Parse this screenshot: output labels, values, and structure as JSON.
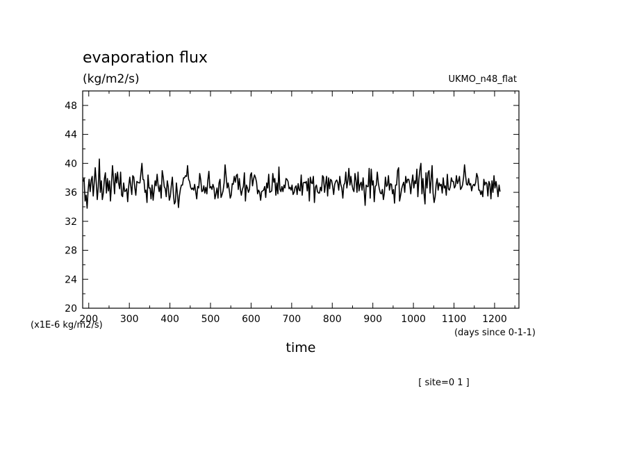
{
  "chart_data": {
    "type": "line",
    "title": "evaporation flux",
    "title_units": "(kg/m2/s)",
    "model_label": "UKMO_n48_flat",
    "xlabel": "time",
    "x_units": "(days since 0-1-1)",
    "y_units": "(x1E-6 kg/m2/s)",
    "site_label": "[ site=0 1 ]",
    "xlim": [
      185,
      1260
    ],
    "ylim": [
      20,
      50
    ],
    "x_ticks": [
      200,
      300,
      400,
      500,
      600,
      700,
      800,
      900,
      1000,
      1100,
      1200
    ],
    "y_ticks": [
      20,
      24,
      28,
      32,
      36,
      40,
      44,
      48
    ],
    "grid": false,
    "series": [
      {
        "x_start": 186,
        "x_step": 2.5,
        "values": [
          37.5,
          37.9,
          34.8,
          35.6,
          33.8,
          36.4,
          37.8,
          36.1,
          37.7,
          38.2,
          35.5,
          37.3,
          39.4,
          37.3,
          35.0,
          36.8,
          40.6,
          36.0,
          37.6,
          35.0,
          35.9,
          37.9,
          38.7,
          35.9,
          37.9,
          36.2,
          37.6,
          34.8,
          37.1,
          39.7,
          37.9,
          35.8,
          38.6,
          37.3,
          38.8,
          37.3,
          36.5,
          38.8,
          35.6,
          35.4,
          37.3,
          36.1,
          36.2,
          36.5,
          34.7,
          36.9,
          38.1,
          36.9,
          35.7,
          38.3,
          38.1,
          36.6,
          35.6,
          37.5,
          37.4,
          37.3,
          37.3,
          38.6,
          40.0,
          37.8,
          37.7,
          36.0,
          36.3,
          34.6,
          38.4,
          36.6,
          36.6,
          35.1,
          37.0,
          34.9,
          36.2,
          37.6,
          36.9,
          38.5,
          36.9,
          36.1,
          37.0,
          35.2,
          39.0,
          38.1,
          36.8,
          36.5,
          35.4,
          37.6,
          36.7,
          34.9,
          35.5,
          36.9,
          38.1,
          35.8,
          34.4,
          34.7,
          37.3,
          35.8,
          33.9,
          35.5,
          36.5,
          37.0,
          37.0,
          38.0,
          38.0,
          38.3,
          38.2,
          39.7,
          37.8,
          37.5,
          36.7,
          36.4,
          36.6,
          36.3,
          37.1,
          36.1,
          35.1,
          36.8,
          36.6,
          38.6,
          37.7,
          36.1,
          36.2,
          36.9,
          35.9,
          36.7,
          35.8,
          37.7,
          38.9,
          36.6,
          36.8,
          36.4,
          37.1,
          36.6,
          35.1,
          35.8,
          36.6,
          35.2,
          37.3,
          37.8,
          35.3,
          35.7,
          36.2,
          37.3,
          39.8,
          38.2,
          36.6,
          37.3,
          36.4,
          35.2,
          35.6,
          37.2,
          37.1,
          38.2,
          37.4,
          38.3,
          38.5,
          36.4,
          37.9,
          36.4,
          35.6,
          36.4,
          36.8,
          38.7,
          34.8,
          37.0,
          36.6,
          36.0,
          36.4,
          38.4,
          38.7,
          36.9,
          37.8,
          38.4,
          38.0,
          37.4,
          35.8,
          36.3,
          36.0,
          34.9,
          36.1,
          36.2,
          36.3,
          36.8,
          35.3,
          37.3,
          36.6,
          38.5,
          36.0,
          36.1,
          36.2,
          38.6,
          37.4,
          37.9,
          35.6,
          37.3,
          35.8,
          39.5,
          36.4,
          36.1,
          36.8,
          36.1,
          37.0,
          36.6,
          37.9,
          37.8,
          37.5,
          36.5,
          36.7,
          36.3,
          37.0,
          35.7,
          36.0,
          36.7,
          36.9,
          35.7,
          37.2,
          36.3,
          36.2,
          38.4,
          35.6,
          37.3,
          37.4,
          37.3,
          37.5,
          36.2,
          37.9,
          34.8,
          38.1,
          37.3,
          37.2,
          38.2,
          34.6,
          36.7,
          37.0,
          36.1,
          35.9,
          35.9,
          36.7,
          36.2,
          38.3,
          38.1,
          36.0,
          37.1,
          38.2,
          35.5,
          38.0,
          36.5,
          37.8,
          37.6,
          36.8,
          35.7,
          37.1,
          37.5,
          37.7,
          37.3,
          36.3,
          38.2,
          37.1,
          36.6,
          35.2,
          37.0,
          37.3,
          38.8,
          36.6,
          37.7,
          39.3,
          37.0,
          38.2,
          37.1,
          36.4,
          36.1,
          38.6,
          37.7,
          36.0,
          38.8,
          36.2,
          37.1,
          37.4,
          36.3,
          38.0,
          36.4,
          34.2,
          37.0,
          36.8,
          36.8,
          39.3,
          35.2,
          39.2,
          37.0,
          37.6,
          34.7,
          36.8,
          37.0,
          38.8,
          37.3,
          36.5,
          35.9,
          35.8,
          36.4,
          35.0,
          35.9,
          38.1,
          36.8,
          37.0,
          38.3,
          36.3,
          37.2,
          37.1,
          35.8,
          36.4,
          34.5,
          37.0,
          37.0,
          39.0,
          39.4,
          34.8,
          35.6,
          36.5,
          37.0,
          37.4,
          36.0,
          38.2,
          37.3,
          37.8,
          37.8,
          37.1,
          35.8,
          37.4,
          38.4,
          36.6,
          37.6,
          37.2,
          39.2,
          35.4,
          37.8,
          39.2,
          40.0,
          35.8,
          37.9,
          35.9,
          34.4,
          38.7,
          36.6,
          38.7,
          39.0,
          35.9,
          37.7,
          39.7,
          35.9,
          34.6,
          35.4,
          37.1,
          37.9,
          36.3,
          37.3,
          36.9,
          37.1,
          35.9,
          38.0,
          36.6,
          36.9,
          35.6,
          38.5,
          36.5,
          36.3,
          36.8,
          38.0,
          37.5,
          37.5,
          36.6,
          36.9,
          38.3,
          37.2,
          37.6,
          38.2,
          36.4,
          36.6,
          37.0,
          38.1,
          39.8,
          38.3,
          37.1,
          37.0,
          37.9,
          37.0,
          37.2,
          36.2,
          36.9,
          37.1,
          36.9,
          37.4,
          38.6,
          38.1,
          36.3,
          36.3,
          35.7,
          36.2,
          35.4,
          37.8,
          37.0,
          37.4,
          37.2,
          35.5,
          37.5,
          37.1,
          35.1,
          37.6,
          36.0,
          38.3,
          36.6,
          37.5,
          36.6,
          35.4,
          37.0,
          36.1
        ]
      }
    ]
  }
}
